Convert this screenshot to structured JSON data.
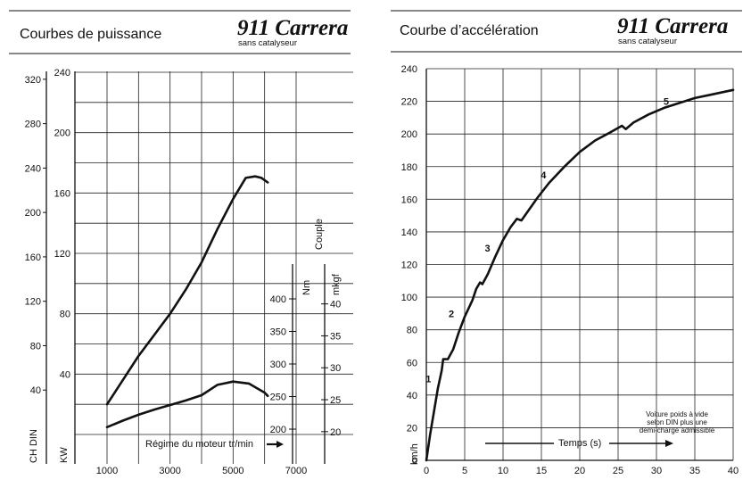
{
  "left": {
    "title": "Courbes de puissance",
    "brand": "911 Carrera",
    "brand_sub": "sans catalyseur",
    "labels": {
      "ch_din": "CH DIN",
      "kw": "KW",
      "nm": "Nm",
      "mkgf": "mkgf",
      "couple": "Couple",
      "x_axis": "Régime du moteur tr/min"
    },
    "x_ticks": [
      "1000",
      "3000",
      "5000",
      "7000"
    ],
    "ch_ticks": [
      "40",
      "80",
      "120",
      "160",
      "200",
      "240",
      "280",
      "320"
    ],
    "kw_ticks": [
      "40",
      "80",
      "120",
      "160",
      "200",
      "240"
    ],
    "nm_ticks": [
      "200",
      "250",
      "300",
      "350",
      "400"
    ],
    "mkgf_ticks": [
      "20",
      "25",
      "30",
      "35",
      "40"
    ]
  },
  "right": {
    "title": "Courbe d’accélération",
    "brand": "911 Carrera",
    "brand_sub": "sans catalyseur",
    "labels": {
      "y_unit": "km/h",
      "x_axis": "Temps (s)",
      "note_line1": "Voiture poids à vide",
      "note_line2": "selon DIN plus une",
      "note_line3": "demi-charge admissible"
    },
    "y_ticks": [
      "0",
      "20",
      "40",
      "60",
      "80",
      "100",
      "120",
      "140",
      "160",
      "180",
      "200",
      "220",
      "240"
    ],
    "x_ticks": [
      "0",
      "5",
      "10",
      "15",
      "20",
      "25",
      "30",
      "35",
      "40"
    ],
    "gear_labels": [
      "1",
      "2",
      "3",
      "4",
      "5"
    ]
  },
  "chart_data": [
    {
      "type": "line",
      "title": "Courbes de puissance",
      "xlabel": "Régime du moteur tr/min",
      "ylabel": "CH DIN / KW",
      "xlim": [
        0,
        7000
      ],
      "ylim_kw": [
        0,
        240
      ],
      "ylim_ch": [
        0,
        320
      ],
      "series": [
        {
          "name": "",
          "unit": "kW",
          "x": [
            1000,
            1500,
            2000,
            2500,
            3000,
            3500,
            4000,
            4500,
            5000,
            5400,
            5700,
            5900,
            6100
          ],
          "values": [
            20,
            36,
            52,
            66,
            80,
            96,
            114,
            136,
            156,
            170,
            171,
            170,
            167
          ]
        },
        {
          "name": "Couple",
          "unit": "Nm",
          "x": [
            1000,
            1500,
            2000,
            2500,
            3000,
            3500,
            4000,
            4500,
            5000,
            5500,
            6000,
            6100
          ],
          "values": [
            203,
            213,
            222,
            230,
            237,
            244,
            252,
            268,
            273,
            270,
            256,
            251
          ]
        }
      ],
      "grid": true
    },
    {
      "type": "line",
      "title": "Courbe d’accélération",
      "xlabel": "Temps (s)",
      "ylabel": "km/h",
      "xlim": [
        0,
        40
      ],
      "ylim": [
        0,
        240
      ],
      "series": [
        {
          "name": "",
          "x": [
            0,
            0.5,
            1,
            1.5,
            2,
            2.2,
            2.8,
            3.5,
            4.2,
            5,
            6,
            6.5,
            7,
            7.3,
            8,
            9,
            10,
            11,
            11.8,
            12.4,
            13,
            14.5,
            16,
            18,
            20,
            22,
            24,
            25.5,
            26,
            27,
            29,
            31,
            33,
            35,
            37,
            40
          ],
          "values": [
            0,
            16,
            30,
            44,
            55,
            62,
            62,
            68,
            78,
            88,
            98,
            105,
            109,
            108,
            114,
            125,
            135,
            143,
            148,
            147,
            151,
            161,
            170,
            180,
            189,
            196,
            201,
            205,
            203,
            207,
            212,
            216,
            219,
            222,
            224,
            227
          ]
        }
      ],
      "annotations": [
        "1",
        "2",
        "3",
        "4",
        "5"
      ],
      "grid": true
    }
  ]
}
